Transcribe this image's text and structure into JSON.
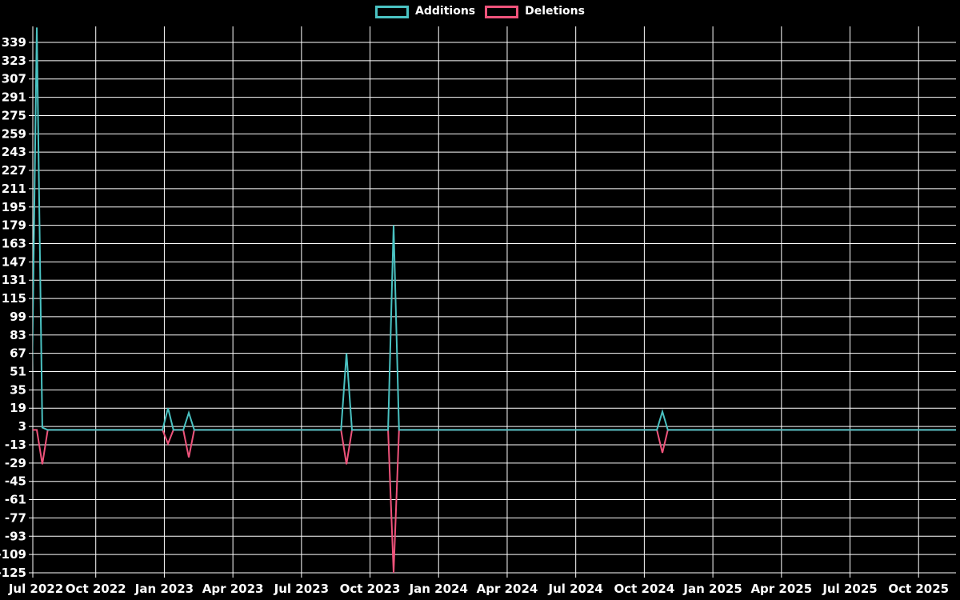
{
  "colors": {
    "background": "#000000",
    "grid": "#ffffff",
    "text": "#ffffff",
    "additions": "#4ac2c2",
    "deletions": "#ef537b"
  },
  "chart_data": {
    "type": "line",
    "legend_position": "top",
    "legend": [
      {
        "name": "Additions",
        "color": "#4ac2c2"
      },
      {
        "name": "Deletions",
        "color": "#ef537b"
      }
    ],
    "y_ticks": [
      339,
      323,
      307,
      291,
      275,
      259,
      243,
      227,
      211,
      195,
      179,
      163,
      147,
      131,
      115,
      99,
      83,
      67,
      51,
      35,
      19,
      3,
      -13,
      -29,
      -45,
      -61,
      -77,
      -93,
      -109,
      -125
    ],
    "y_min": -125,
    "y_max": 353,
    "x_ticks": [
      {
        "label": "Jul 2022",
        "month_offset": 0
      },
      {
        "label": "Oct 2022",
        "month_offset": 3
      },
      {
        "label": "Jan 2023",
        "month_offset": 6
      },
      {
        "label": "Apr 2023",
        "month_offset": 9
      },
      {
        "label": "Jul 2023",
        "month_offset": 12
      },
      {
        "label": "Oct 2023",
        "month_offset": 15
      },
      {
        "label": "Jan 2024",
        "month_offset": 18
      },
      {
        "label": "Apr 2024",
        "month_offset": 21
      },
      {
        "label": "Jul 2024",
        "month_offset": 24
      },
      {
        "label": "Oct 2024",
        "month_offset": 27
      },
      {
        "label": "Jan 2025",
        "month_offset": 30
      },
      {
        "label": "Apr 2025",
        "month_offset": 33
      },
      {
        "label": "Jul 2025",
        "month_offset": 36
      },
      {
        "label": "Oct 2025",
        "month_offset": 39
      }
    ],
    "x_domain_months": [
      -0.3,
      40.64
    ],
    "grid": true,
    "baseline": 0,
    "spike_halfwidth_months": 0.24,
    "events": [
      {
        "date": "2022-07-13",
        "month_offset": 0.42,
        "additions": 352,
        "deletions": 0
      },
      {
        "date": "2022-07-20",
        "month_offset": 0.66,
        "additions": 2,
        "deletions": -30
      },
      {
        "date": "2023-01-05",
        "month_offset": 6.16,
        "additions": 19,
        "deletions": -12
      },
      {
        "date": "2023-02-02",
        "month_offset": 7.07,
        "additions": 15,
        "deletions": -24
      },
      {
        "date": "2023-08-30",
        "month_offset": 13.97,
        "additions": 67,
        "deletions": -30
      },
      {
        "date": "2023-11-01",
        "month_offset": 16.03,
        "additions": 179,
        "deletions": -125
      },
      {
        "date": "2024-10-24",
        "month_offset": 27.79,
        "additions": 16,
        "deletions": -20
      }
    ]
  }
}
